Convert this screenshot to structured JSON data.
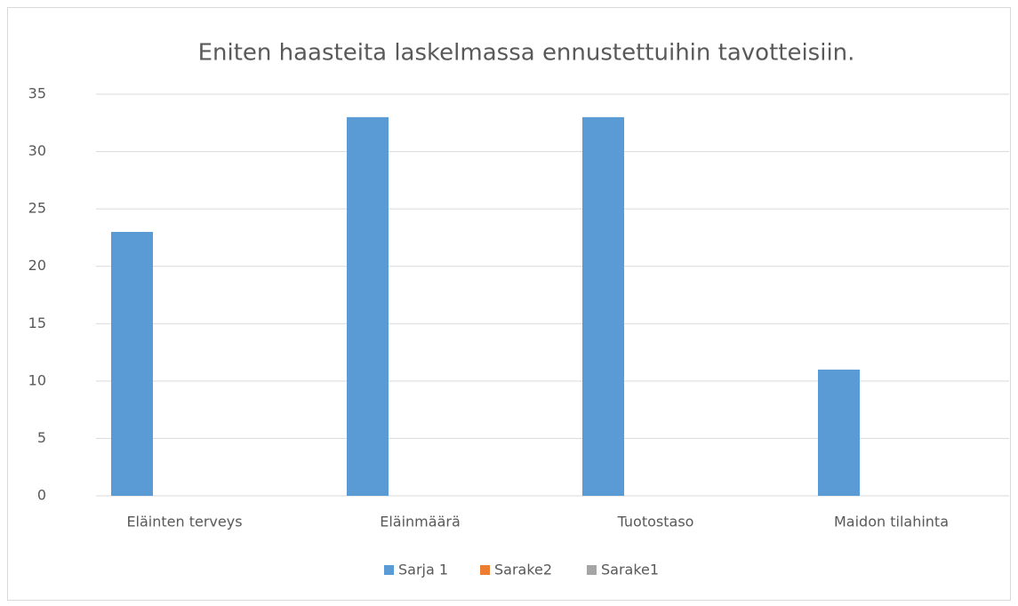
{
  "chart_data": {
    "type": "bar",
    "title": "Eniten haasteita  laskelmassa ennustettuihin tavotteisiin.",
    "categories": [
      "Eläinten terveys",
      "Eläinmäärä",
      "Tuotostaso",
      "Maidon tilahinta"
    ],
    "series": [
      {
        "name": "Sarja 1",
        "color": "#5b9bd5",
        "values": [
          23,
          33,
          33,
          11
        ]
      },
      {
        "name": "Sarake2",
        "color": "#ed7d31",
        "values": [
          null,
          null,
          null,
          null
        ]
      },
      {
        "name": "Sarake1",
        "color": "#a5a5a5",
        "values": [
          null,
          null,
          null,
          null
        ]
      }
    ],
    "ylim": [
      0,
      35
    ],
    "yticks": [
      0,
      5,
      10,
      15,
      20,
      25,
      30,
      35
    ],
    "grid": true,
    "legend": "bottom"
  }
}
